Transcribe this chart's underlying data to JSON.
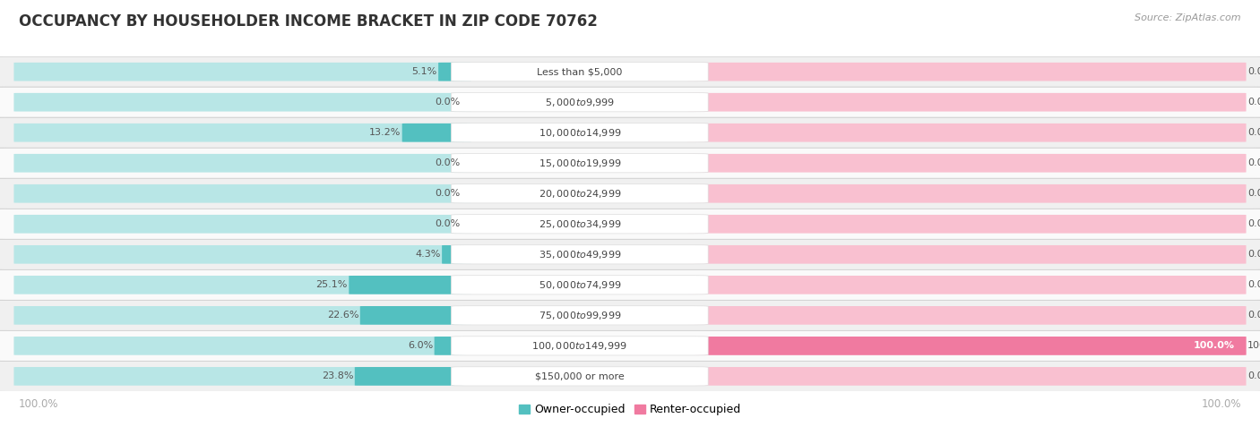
{
  "title": "OCCUPANCY BY HOUSEHOLDER INCOME BRACKET IN ZIP CODE 70762",
  "source": "Source: ZipAtlas.com",
  "categories": [
    "Less than $5,000",
    "$5,000 to $9,999",
    "$10,000 to $14,999",
    "$15,000 to $19,999",
    "$20,000 to $24,999",
    "$25,000 to $34,999",
    "$35,000 to $49,999",
    "$50,000 to $74,999",
    "$75,000 to $99,999",
    "$100,000 to $149,999",
    "$150,000 or more"
  ],
  "owner_pct": [
    5.1,
    0.0,
    13.2,
    0.0,
    0.0,
    0.0,
    4.3,
    25.1,
    22.6,
    6.0,
    23.8
  ],
  "renter_pct": [
    0.0,
    0.0,
    0.0,
    0.0,
    0.0,
    0.0,
    0.0,
    0.0,
    0.0,
    100.0,
    0.0
  ],
  "owner_color": "#53c0c0",
  "renter_color": "#f07aa0",
  "owner_bg_color": "#b8e6e6",
  "renter_bg_color": "#f9c0d0",
  "row_bg_odd": "#f0f0f0",
  "row_bg_even": "#fafafa",
  "title_color": "#333333",
  "source_color": "#999999",
  "pct_label_color": "#555555",
  "cat_label_color": "#444444",
  "axis_pct_color": "#aaaaaa",
  "max_val": 100.0,
  "legend_owner": "Owner-occupied",
  "legend_renter": "Renter-occupied",
  "figsize": [
    14.06,
    4.86
  ],
  "dpi": 100,
  "title_fontsize": 12,
  "source_fontsize": 8,
  "cat_fontsize": 8,
  "pct_fontsize": 8,
  "axis_fontsize": 8.5,
  "legend_fontsize": 9
}
